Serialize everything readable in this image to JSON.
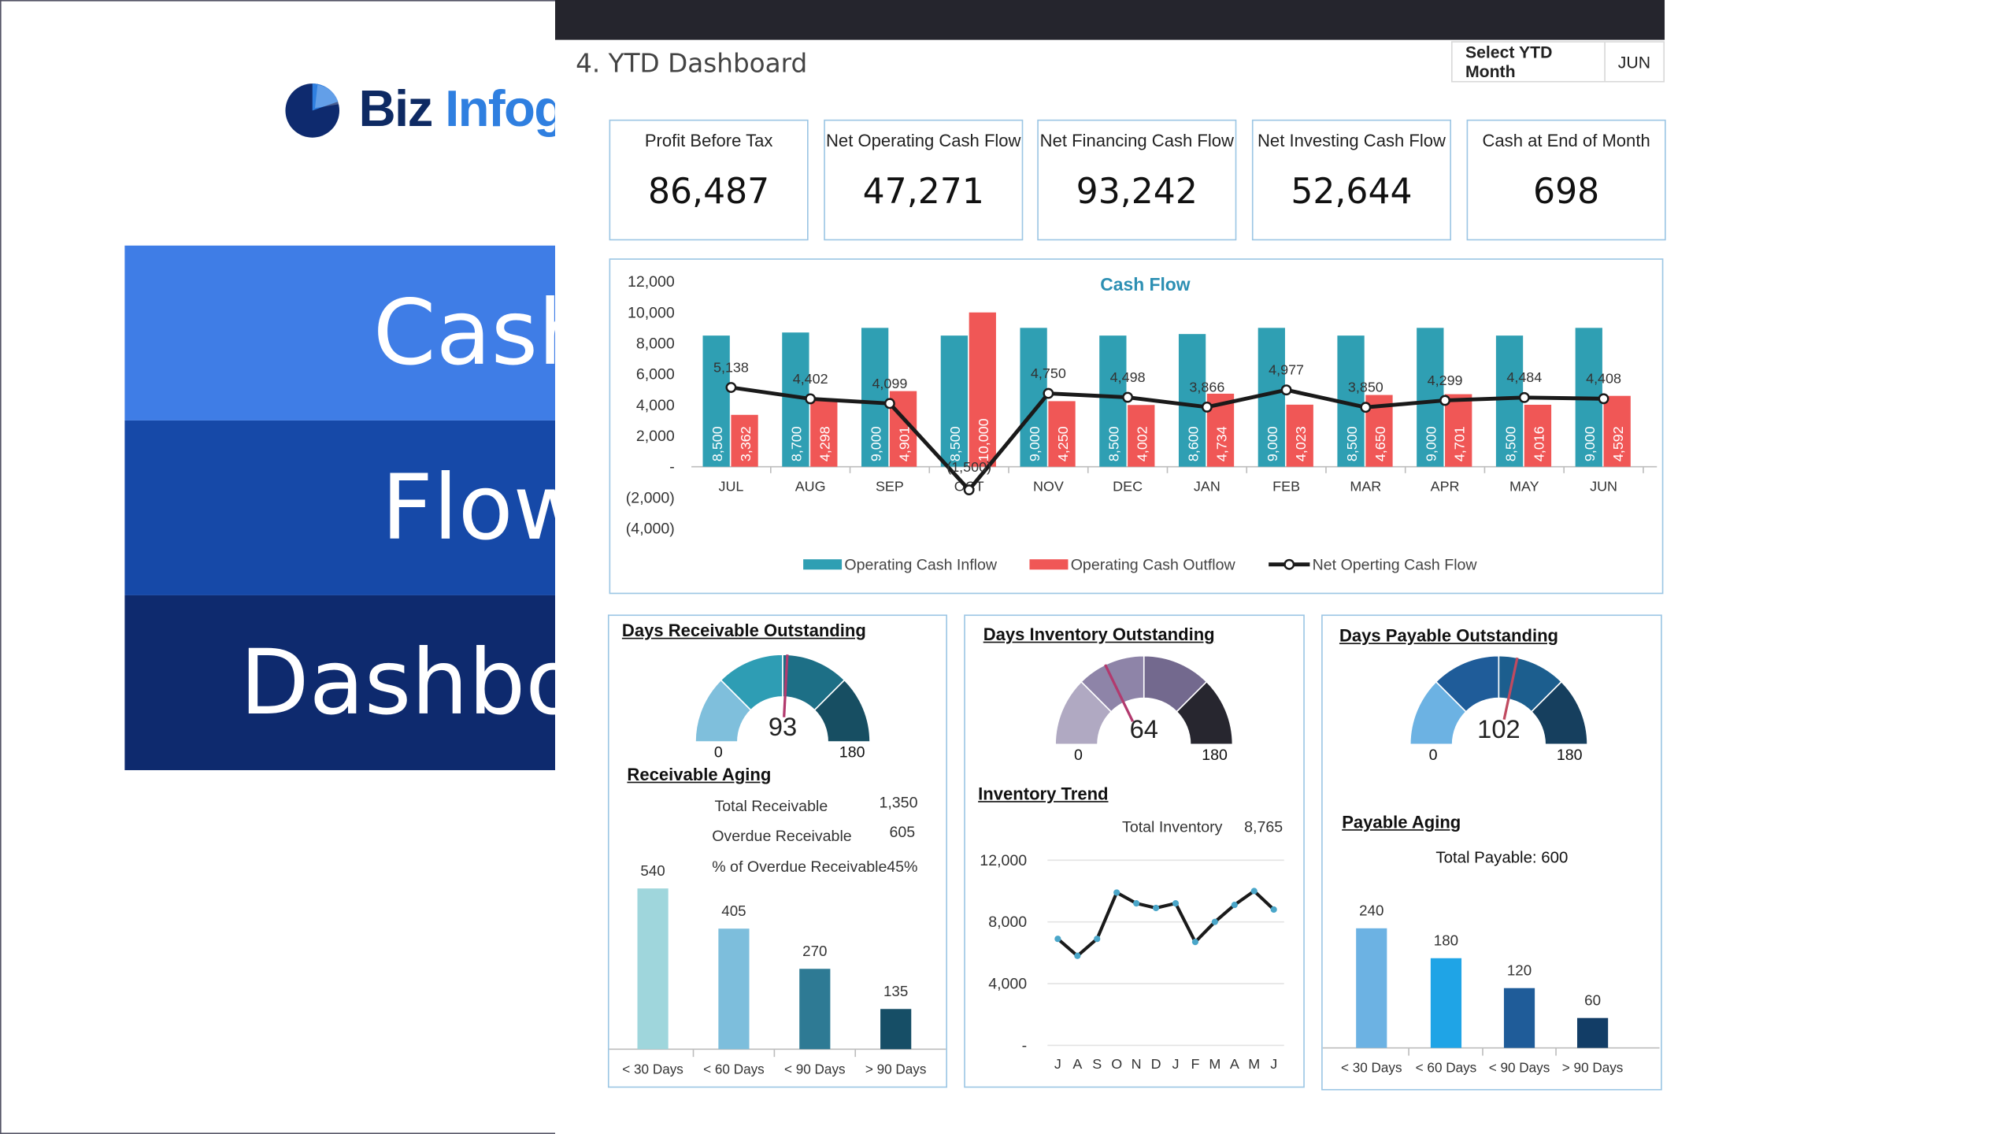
{
  "logo": {
    "part1": "Biz",
    "part2": "Infograph"
  },
  "title_lines": [
    "Cash",
    "Flow",
    "Dashboard"
  ],
  "colors": {
    "band1": "#3f7de6",
    "band2": "#1649a8",
    "band3": "#0e2a6e",
    "inflow": "#2f9fb3",
    "outflow": "#f05756",
    "net": "#1a1a1a"
  },
  "dashboard_title": "4. YTD Dashboard",
  "ytd_selector": {
    "label": "Select YTD Month",
    "value": "JUN"
  },
  "kpis": [
    {
      "title": "Profit Before Tax",
      "value": "86,487"
    },
    {
      "title": "Net Operating Cash Flow",
      "value": "47,271"
    },
    {
      "title": "Net Financing Cash Flow",
      "value": "93,242"
    },
    {
      "title": "Net Investing Cash Flow",
      "value": "52,644"
    },
    {
      "title": "Cash at End of Month",
      "value": "698"
    }
  ],
  "chart_data": [
    {
      "type": "bar",
      "title": "Cash Flow",
      "categories": [
        "JUL",
        "AUG",
        "SEP",
        "OCT",
        "NOV",
        "DEC",
        "JAN",
        "FEB",
        "MAR",
        "APR",
        "MAY",
        "JUN"
      ],
      "series": [
        {
          "name": "Operating Cash Inflow",
          "values": [
            8500,
            8700,
            9000,
            8500,
            9000,
            8500,
            8600,
            9000,
            8500,
            9000,
            8500,
            9000
          ]
        },
        {
          "name": "Operating Cash Outflow",
          "values": [
            3362,
            4298,
            4901,
            10000,
            4250,
            4002,
            4734,
            4023,
            4650,
            4701,
            4016,
            4592
          ]
        },
        {
          "name": "Net Operting Cash Flow",
          "type": "line",
          "values": [
            5138,
            4402,
            4099,
            -1500,
            4750,
            4498,
            3866,
            4977,
            3850,
            4299,
            4484,
            4408
          ]
        }
      ],
      "inflow_labels": [
        "8,500",
        "8,700",
        "9,000",
        "8,500",
        "9,000",
        "8,500",
        "8,600",
        "9,000",
        "8,500",
        "9,000",
        "8,500",
        "9,000"
      ],
      "outflow_labels": [
        "3,362",
        "4,298",
        "4,901",
        "10,000",
        "4,250",
        "4,002",
        "4,734",
        "4,023",
        "4,650",
        "4,701",
        "4,016",
        "4,592"
      ],
      "net_labels": [
        "5,138",
        "4,402",
        "4,099",
        "(1,500)",
        "4,750",
        "4,498",
        "3,866",
        "4,977",
        "3,850",
        "4,299",
        "4,484",
        "4,408"
      ],
      "yticks": [
        "12,000",
        "10,000",
        "8,000",
        "6,000",
        "4,000",
        "2,000",
        "-",
        "(2,000)",
        "(4,000)"
      ],
      "ylim": [
        -4000,
        12000
      ],
      "legend": "bottom"
    },
    {
      "type": "bar",
      "title": "Receivable Aging",
      "categories": [
        "< 30 Days",
        "< 60 Days",
        "< 90 Days",
        "> 90 Days"
      ],
      "values": [
        540,
        405,
        270,
        135
      ],
      "colors": [
        "#9fd6dc",
        "#7dbedc",
        "#2e7a94",
        "#164e66"
      ]
    },
    {
      "type": "line",
      "title": "Inventory Trend",
      "categories": [
        "J",
        "A",
        "S",
        "O",
        "N",
        "D",
        "J",
        "F",
        "M",
        "A",
        "M",
        "J"
      ],
      "values": [
        6900,
        5800,
        6900,
        9900,
        9200,
        8900,
        9200,
        6700,
        8000,
        9100,
        10000,
        8800
      ],
      "yticks": [
        "12,000",
        "8,000",
        "4,000",
        "-"
      ],
      "ylim": [
        0,
        12000
      ]
    },
    {
      "type": "bar",
      "title": "Payable Aging",
      "categories": [
        "< 30 Days",
        "< 60 Days",
        "< 90 Days",
        "> 90 Days"
      ],
      "values": [
        240,
        180,
        120,
        60
      ],
      "colors": [
        "#6cb2e3",
        "#1fa4e6",
        "#1f5c99",
        "#123d66"
      ]
    }
  ],
  "receivable": {
    "title": "Days Receivable Outstanding",
    "gauge": {
      "value": "93",
      "min": "0",
      "max": "180",
      "fraction": 0.517
    },
    "aging_title": "Receivable Aging",
    "stats": [
      {
        "label": "Total Receivable",
        "value": "1,350"
      },
      {
        "label": "Overdue Receivable",
        "value": "605"
      },
      {
        "label": "% of Overdue Receivable",
        "value": "45%"
      }
    ]
  },
  "inventory": {
    "title": "Days Inventory Outstanding",
    "gauge": {
      "value": "64",
      "min": "0",
      "max": "180",
      "fraction": 0.356
    },
    "trend_title": "Inventory Trend",
    "total_label": "Total Inventory",
    "total_value": "8,765"
  },
  "payable": {
    "title": "Days Payable Outstanding",
    "gauge": {
      "value": "102",
      "min": "0",
      "max": "180",
      "fraction": 0.567
    },
    "aging_title": "Payable Aging",
    "total_text": "Total Payable: 600"
  }
}
